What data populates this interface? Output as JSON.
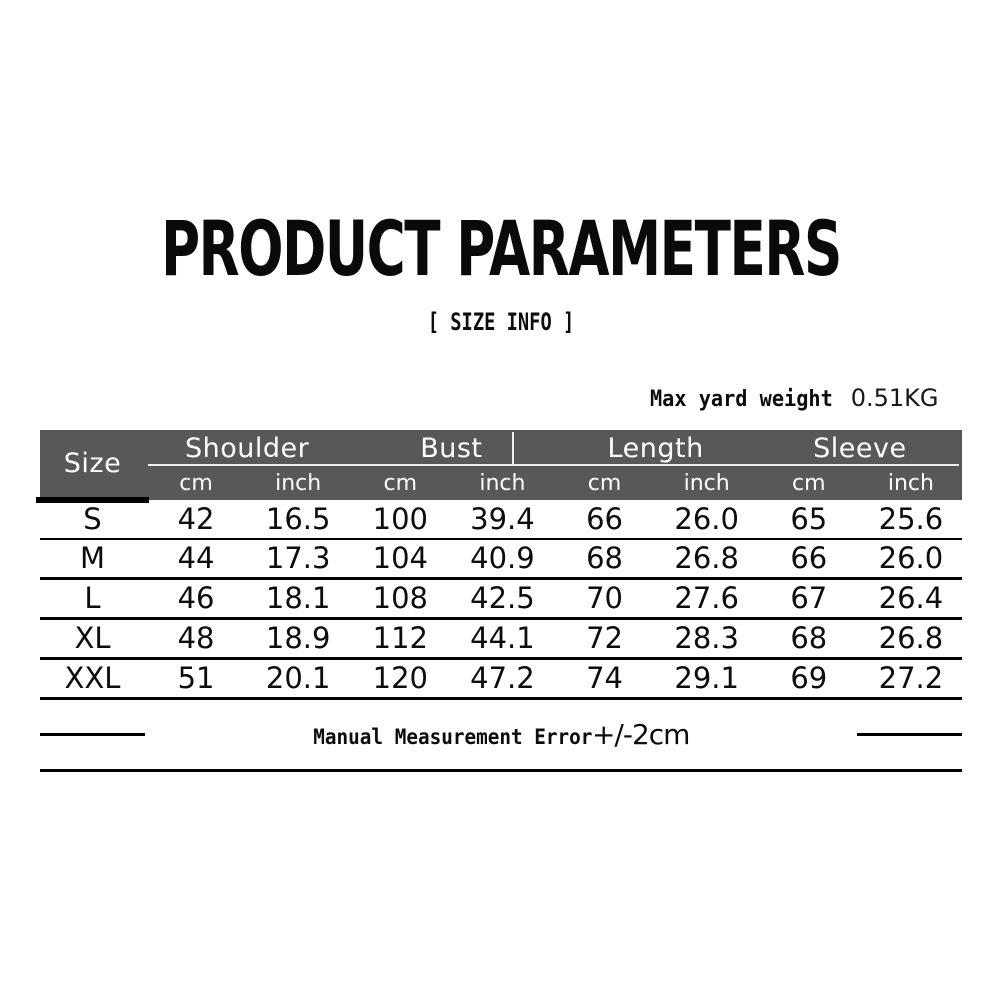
{
  "page": {
    "title": "PRODUCT PARAMETERS",
    "subtitle": "[ SIZE INFO ]",
    "weight_label": "Max yard weight",
    "weight_value": "0.51KG",
    "footnote_text": "Manual Measurement Error",
    "footnote_suffix": "+/-2cm"
  },
  "size_table": {
    "corner_header": "Size",
    "group_headers": [
      "Shoulder",
      "Bust",
      "Length",
      "Sleeve"
    ],
    "unit_headers": [
      "cm",
      "inch",
      "cm",
      "inch",
      "cm",
      "inch",
      "cm",
      "inch"
    ],
    "rows": [
      {
        "size": "S",
        "values": [
          "42",
          "16.5",
          "100",
          "39.4",
          "66",
          "26.0",
          "65",
          "25.6"
        ]
      },
      {
        "size": "M",
        "values": [
          "44",
          "17.3",
          "104",
          "40.9",
          "68",
          "26.8",
          "66",
          "26.0"
        ]
      },
      {
        "size": "L",
        "values": [
          "46",
          "18.1",
          "108",
          "42.5",
          "70",
          "27.6",
          "67",
          "26.4"
        ]
      },
      {
        "size": "XL",
        "values": [
          "48",
          "18.9",
          "112",
          "44.1",
          "72",
          "28.3",
          "68",
          "26.8"
        ]
      },
      {
        "size": "XXL",
        "values": [
          "51",
          "20.1",
          "120",
          "47.2",
          "74",
          "29.1",
          "69",
          "27.2"
        ]
      }
    ]
  },
  "colors": {
    "header_bg": "#58585a",
    "header_text": "#ffffff",
    "body_text": "#0d0d0d",
    "rule": "#000000"
  }
}
